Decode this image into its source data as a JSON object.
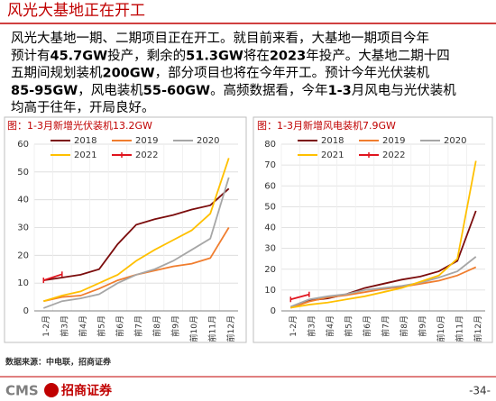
{
  "header": {
    "title": "风光大基地正在开工"
  },
  "paragraph": [
    [
      {
        "text": "风光大基地一期、二期项目正在开工。就目前来看，大基地一期项目今年",
        "bold": false
      }
    ],
    [
      {
        "text": "预计有",
        "bold": false
      },
      {
        "text": "45.7GW",
        "bold": true
      },
      {
        "text": "投产，剩余的",
        "bold": false
      },
      {
        "text": "51.3GW",
        "bold": true
      },
      {
        "text": "将在",
        "bold": false
      },
      {
        "text": "2023",
        "bold": true
      },
      {
        "text": "年投产。大基地二期十四",
        "bold": false
      }
    ],
    [
      {
        "text": "五期间规划装机",
        "bold": false
      },
      {
        "text": "200GW",
        "bold": true
      },
      {
        "text": "，部分项目也将在今年开工。预计今年光伏装机",
        "bold": false
      }
    ],
    [
      {
        "text": "85-95GW",
        "bold": true
      },
      {
        "text": "，风电装机",
        "bold": false
      },
      {
        "text": "55-60GW",
        "bold": true
      },
      {
        "text": "。高频数据看，今年",
        "bold": false
      },
      {
        "text": "1-3",
        "bold": true
      },
      {
        "text": "月风电与光伏装机",
        "bold": false
      }
    ],
    [
      {
        "text": "均高于往年，开局良好。",
        "bold": false
      }
    ]
  ],
  "chart_data": [
    {
      "type": "line",
      "title": "图：1-3月新增光伏装机13.2GW",
      "categories": [
        "1-2月",
        "前3月",
        "前4月",
        "前5月",
        "前6月",
        "前7月",
        "前8月",
        "前9月",
        "前10月",
        "前11月",
        "前12月"
      ],
      "ylim": [
        0,
        60
      ],
      "yticks": [
        0,
        10,
        20,
        30,
        40,
        50,
        60
      ],
      "grid": true,
      "series": [
        {
          "name": "2018",
          "color": "#7b0c0c",
          "values": [
            11,
            12,
            13,
            15,
            24,
            31,
            33,
            34.5,
            36.5,
            38,
            44
          ]
        },
        {
          "name": "2019",
          "color": "#f07d2e",
          "values": [
            3.5,
            5,
            5.5,
            8,
            11,
            13,
            14.5,
            16,
            17,
            19,
            30
          ]
        },
        {
          "name": "2020",
          "color": "#a6a6a6",
          "values": [
            1,
            3.5,
            4.5,
            6,
            10,
            13,
            15,
            18,
            22,
            26,
            48
          ]
        },
        {
          "name": "2021",
          "color": "#ffc000",
          "values": [
            3.5,
            5.5,
            7,
            10,
            13,
            18,
            22,
            25.5,
            29,
            35,
            55
          ]
        },
        {
          "name": "2022",
          "color": "#e0141e",
          "marker": true,
          "values": [
            11,
            13.2,
            null,
            null,
            null,
            null,
            null,
            null,
            null,
            null,
            null
          ]
        }
      ]
    },
    {
      "type": "line",
      "title": "图：1-3月新增风电装机7.9GW",
      "categories": [
        "1-2月",
        "前3月",
        "前4月",
        "前5月",
        "前6月",
        "前7月",
        "前8月",
        "前9月",
        "前10月",
        "前11月",
        "前12月"
      ],
      "ylim": [
        0,
        80
      ],
      "yticks": [
        0,
        10,
        20,
        30,
        40,
        50,
        60,
        70,
        80
      ],
      "grid": true,
      "series": [
        {
          "name": "2018",
          "color": "#7b0c0c",
          "values": [
            1.5,
            5,
            6,
            8,
            11,
            13,
            15,
            16.5,
            19,
            24,
            48
          ]
        },
        {
          "name": "2019",
          "color": "#f07d2e",
          "values": [
            1.5,
            4.5,
            6.5,
            7.5,
            9,
            10.5,
            11.5,
            13,
            14.5,
            17,
            21
          ]
        },
        {
          "name": "2020",
          "color": "#a6a6a6",
          "values": [
            2,
            5.5,
            7,
            8,
            10,
            11,
            12,
            13.5,
            16,
            19,
            26
          ]
        },
        {
          "name": "2021",
          "color": "#ffc000",
          "values": [
            1.5,
            3,
            4,
            5.5,
            7,
            9,
            11,
            14,
            17,
            25,
            72
          ]
        },
        {
          "name": "2022",
          "color": "#e0141e",
          "marker": true,
          "values": [
            5.5,
            7.9,
            null,
            null,
            null,
            null,
            null,
            null,
            null,
            null,
            null
          ]
        }
      ]
    }
  ],
  "source": "数据来源：中电联，招商证券",
  "footer": {
    "logo": "CMS",
    "company": "招商证券",
    "page": "-34-"
  }
}
